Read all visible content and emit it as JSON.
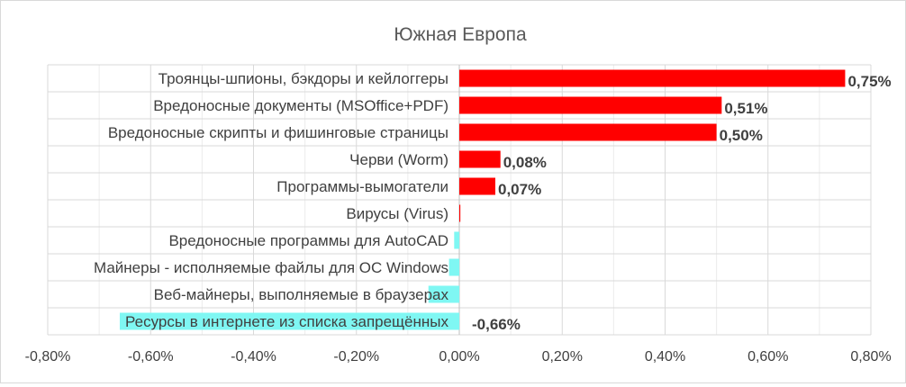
{
  "chart_data": {
    "type": "bar",
    "orientation": "horizontal",
    "title": "Южная Европа",
    "categories": [
      "Троянцы-шпионы, бэкдоры и кейлоггеры",
      "Вредоносные документы (MSOffice+PDF)",
      "Вредоносные скрипты и фишинговые страницы",
      "Черви (Worm)",
      "Программы-вымогатели",
      "Вирусы (Virus)",
      "Вредоносные программы для AutoCAD",
      "Майнеры - исполняемые файлы для ОС Windows",
      "Веб-майнеры, выполняемые в браузерах",
      "Ресурсы в интернете из списка запрещённых"
    ],
    "values": [
      0.75,
      0.51,
      0.5,
      0.08,
      0.07,
      0.002,
      -0.01,
      -0.02,
      -0.06,
      -0.66
    ],
    "data_labels": [
      "0,75%",
      "0,51%",
      "0,50%",
      "0,08%",
      "0,07%",
      "",
      "",
      "",
      "",
      "-0,66%"
    ],
    "xlim": [
      -0.8,
      0.8
    ],
    "ticks": [
      -0.8,
      -0.6,
      -0.4,
      -0.2,
      0.0,
      0.2,
      0.4,
      0.6,
      0.8
    ],
    "tick_labels": [
      "-0,80%",
      "-0,60%",
      "-0,40%",
      "-0,20%",
      "0,00%",
      "0,20%",
      "0,40%",
      "0,60%",
      "0,80%"
    ],
    "grid": true,
    "legend": "none",
    "colors": {
      "positive": "#ff0000",
      "negative": "#7ff7f3",
      "grid": "#d9d9d9",
      "text": "#404040",
      "title": "#595959"
    }
  }
}
